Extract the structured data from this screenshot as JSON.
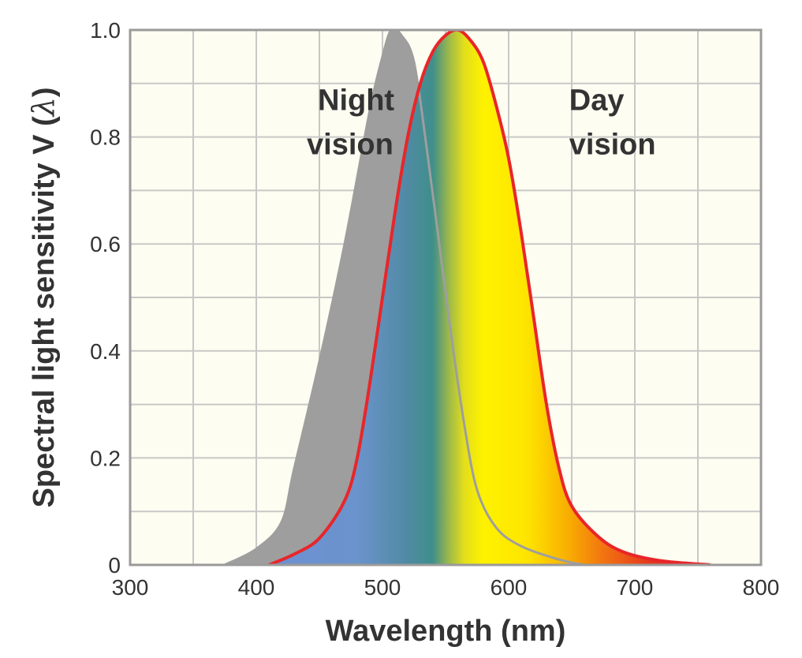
{
  "chart_data": {
    "type": "area",
    "xlabel": "Wavelength (nm)",
    "ylabel_main": "Spectral light sensitivity V (",
    "ylabel_symbol": "λ",
    "ylabel_close": ")",
    "xlim": [
      300,
      800
    ],
    "ylim": [
      0,
      1.0
    ],
    "x_ticks": [
      300,
      400,
      500,
      600,
      700,
      800
    ],
    "x_tick_labels": [
      "300",
      "400",
      "500",
      "600",
      "700",
      "800"
    ],
    "y_ticks": [
      0,
      0.2,
      0.4,
      0.6,
      0.8,
      1.0
    ],
    "y_tick_labels": [
      "0",
      "0.2",
      "0.4",
      "0.6",
      "0.8",
      "1.0"
    ],
    "grid": true,
    "series": [
      {
        "name": "Night vision",
        "fill": "#9e9e9e",
        "points": [
          [
            375,
            0
          ],
          [
            400,
            0.03
          ],
          [
            420,
            0.08
          ],
          [
            430,
            0.18
          ],
          [
            450,
            0.38
          ],
          [
            470,
            0.6
          ],
          [
            490,
            0.85
          ],
          [
            500,
            0.95
          ],
          [
            507,
            1.0
          ],
          [
            515,
            0.99
          ],
          [
            525,
            0.94
          ],
          [
            535,
            0.78
          ],
          [
            545,
            0.6
          ],
          [
            555,
            0.42
          ],
          [
            565,
            0.26
          ],
          [
            575,
            0.14
          ],
          [
            590,
            0.07
          ],
          [
            610,
            0.035
          ],
          [
            640,
            0.01
          ],
          [
            660,
            0
          ]
        ]
      },
      {
        "name": "Day vision",
        "stroke": "#e8262a",
        "points": [
          [
            410,
            0
          ],
          [
            430,
            0.02
          ],
          [
            450,
            0.05
          ],
          [
            470,
            0.12
          ],
          [
            480,
            0.2
          ],
          [
            490,
            0.34
          ],
          [
            500,
            0.5
          ],
          [
            510,
            0.66
          ],
          [
            520,
            0.8
          ],
          [
            530,
            0.9
          ],
          [
            540,
            0.96
          ],
          [
            550,
            0.99
          ],
          [
            560,
            1.0
          ],
          [
            570,
            0.98
          ],
          [
            580,
            0.94
          ],
          [
            590,
            0.86
          ],
          [
            600,
            0.76
          ],
          [
            610,
            0.62
          ],
          [
            620,
            0.46
          ],
          [
            630,
            0.3
          ],
          [
            640,
            0.18
          ],
          [
            650,
            0.11
          ],
          [
            670,
            0.055
          ],
          [
            690,
            0.025
          ],
          [
            720,
            0.008
          ],
          [
            760,
            0
          ]
        ]
      }
    ],
    "annotations": [
      {
        "line1": "Night",
        "line2": "vision",
        "x": 440,
        "y": 0.85
      },
      {
        "line1": "Day",
        "line2": "vision",
        "x": 648,
        "y": 0.85
      }
    ],
    "colors": {
      "plot_background": "#fdfdf1",
      "grid": "#c8c8c8",
      "frame": "#9a9a9a"
    }
  }
}
